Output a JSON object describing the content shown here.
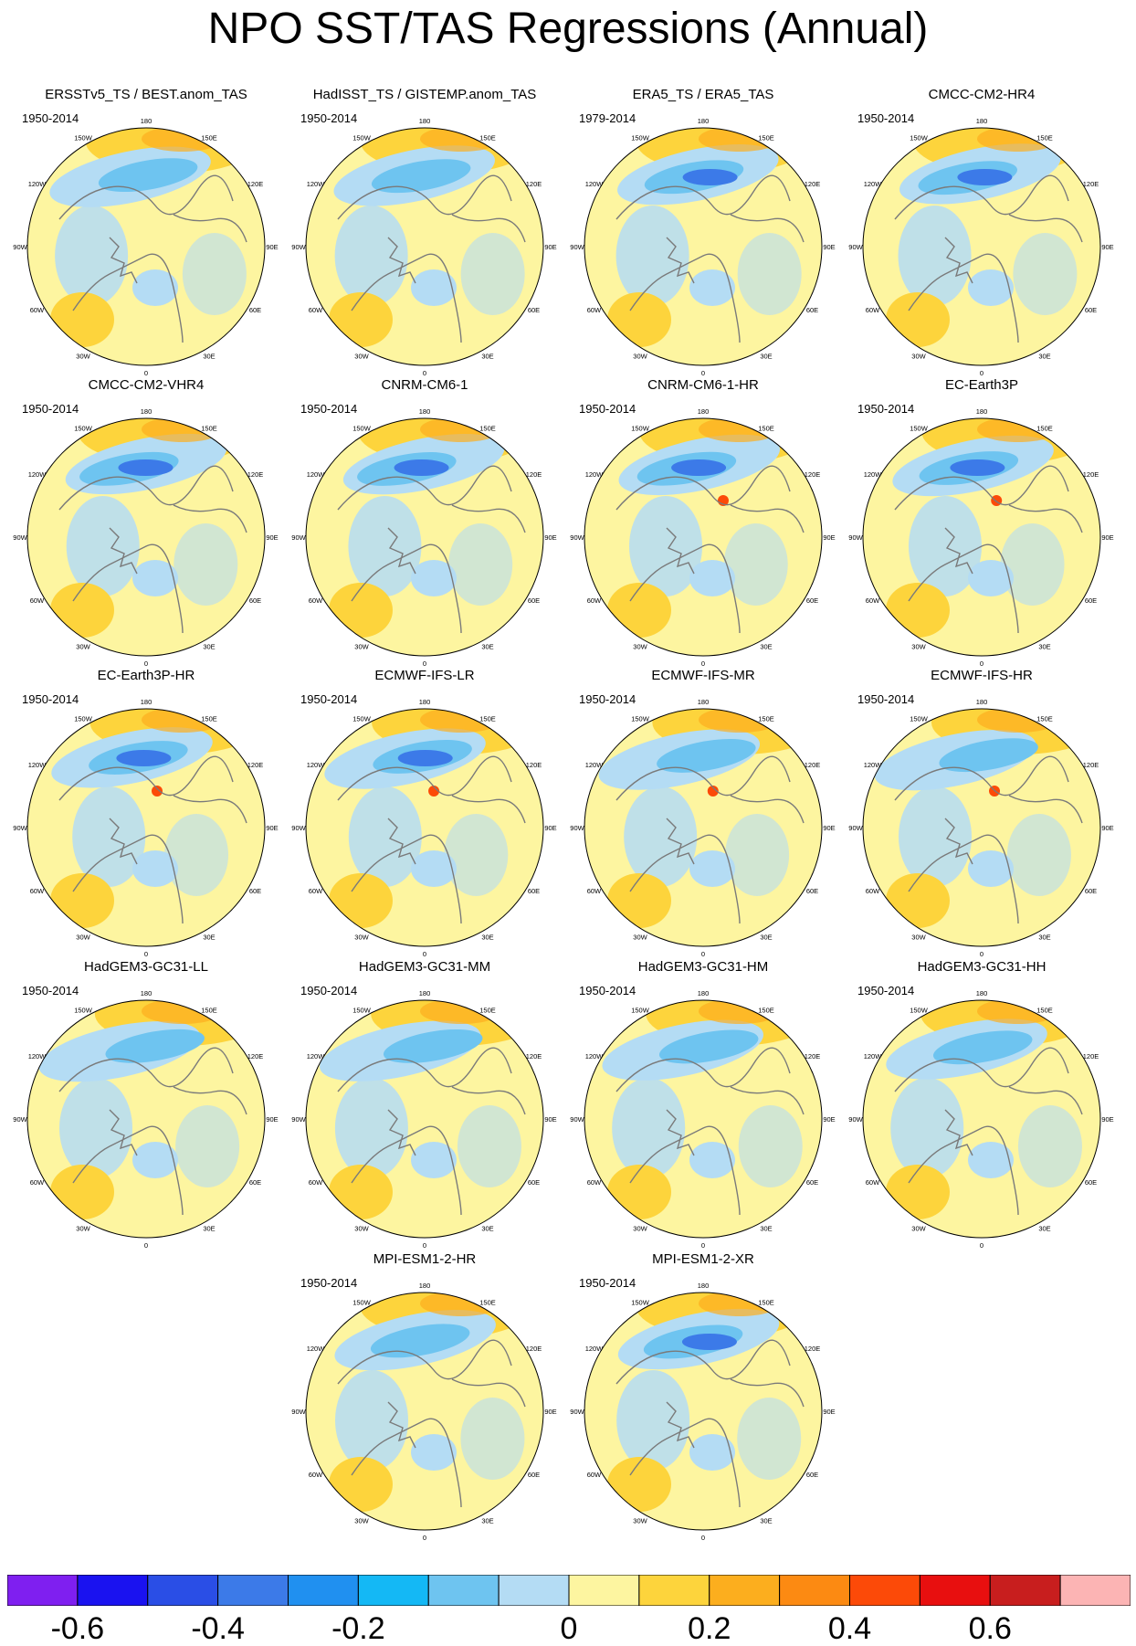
{
  "title": "NPO SST/TAS Regressions (Annual)",
  "map_labels": {
    "lon_180": "180",
    "lon_150w": "150W",
    "lon_150e": "150E",
    "lon_120w": "120W",
    "lon_120e": "120E",
    "lon_90w": "90W",
    "lon_90e": "90E",
    "lon_60w": "60W",
    "lon_60e": "60E",
    "lon_30w": "30W",
    "lon_30e": "30E",
    "lon_0": "0"
  },
  "panels": [
    {
      "name": "ERSSTv5_TS / BEST.anom_TAS",
      "years": "1950-2014"
    },
    {
      "name": "HadISST_TS / GISTEMP.anom_TAS",
      "years": "1950-2014"
    },
    {
      "name": "ERA5_TS / ERA5_TAS",
      "years": "1979-2014"
    },
    {
      "name": "CMCC-CM2-HR4",
      "years": "1950-2014"
    },
    {
      "name": "CMCC-CM2-VHR4",
      "years": "1950-2014"
    },
    {
      "name": "CNRM-CM6-1",
      "years": "1950-2014"
    },
    {
      "name": "CNRM-CM6-1-HR",
      "years": "1950-2014"
    },
    {
      "name": "EC-Earth3P",
      "years": "1950-2014"
    },
    {
      "name": "EC-Earth3P-HR",
      "years": "1950-2014"
    },
    {
      "name": "ECMWF-IFS-LR",
      "years": "1950-2014"
    },
    {
      "name": "ECMWF-IFS-MR",
      "years": "1950-2014"
    },
    {
      "name": "ECMWF-IFS-HR",
      "years": "1950-2014"
    },
    {
      "name": "HadGEM3-GC31-LL",
      "years": "1950-2014"
    },
    {
      "name": "HadGEM3-GC31-MM",
      "years": "1950-2014"
    },
    {
      "name": "HadGEM3-GC31-HM",
      "years": "1950-2014"
    },
    {
      "name": "HadGEM3-GC31-HH",
      "years": "1950-2014"
    },
    {
      "name": "MPI-ESM1-2-HR",
      "years": "1950-2014"
    },
    {
      "name": "MPI-ESM1-2-XR",
      "years": "1950-2014"
    }
  ],
  "colorbar": {
    "colors": [
      "#7f1ff0",
      "#1a12f0",
      "#2a4ee6",
      "#3c7ae8",
      "#2090f0",
      "#14b8f5",
      "#6ec4f0",
      "#b4dcf4",
      "#fdf5a0",
      "#fdd43c",
      "#fcae1e",
      "#fc8a12",
      "#fc4a08",
      "#e80f0f",
      "#c81e1e",
      "#fcb4b4"
    ],
    "labels": [
      "-0.6",
      "-0.4",
      "-0.2",
      "0",
      "0.2",
      "0.4",
      "0.6"
    ],
    "label_boundaries": [
      1,
      3,
      5,
      8,
      10,
      12,
      14
    ]
  },
  "field_colors": {
    "base": "#fdf5a0",
    "warm": "#fdd43c",
    "warm_strong": "#fcae1e",
    "hot": "#fc4a08",
    "cool": "#b4dcf4",
    "cold": "#6ec4f0",
    "cold_strong": "#3c7ae8",
    "coast": "#7a7a7a"
  }
}
